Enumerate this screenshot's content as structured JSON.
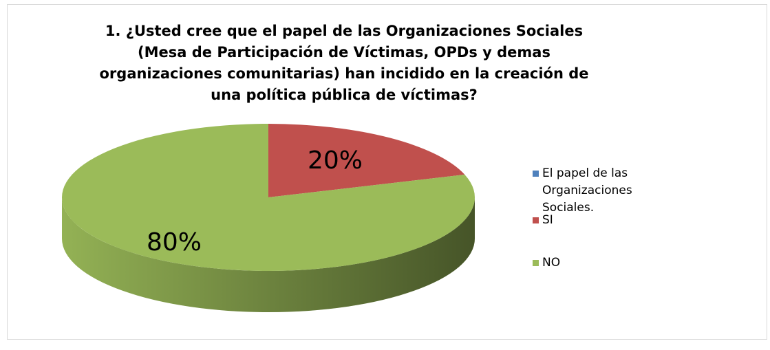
{
  "chart_data": {
    "type": "pie",
    "title": "1. ¿Usted cree que el papel de las Organizaciones Sociales (Mesa de Participación de Víctimas, OPDs y demas organizaciones comunitarias) han incidido en la creación de una política pública de víctimas?",
    "categories": [
      "El papel de las Organizaciones Sociales.",
      "SI",
      "NO"
    ],
    "values": [
      0,
      20,
      80
    ],
    "value_labels": [
      null,
      "20%",
      "80%"
    ],
    "colors": [
      "#4f81bd",
      "#c0504d",
      "#9bbb59"
    ],
    "legend": "right"
  }
}
